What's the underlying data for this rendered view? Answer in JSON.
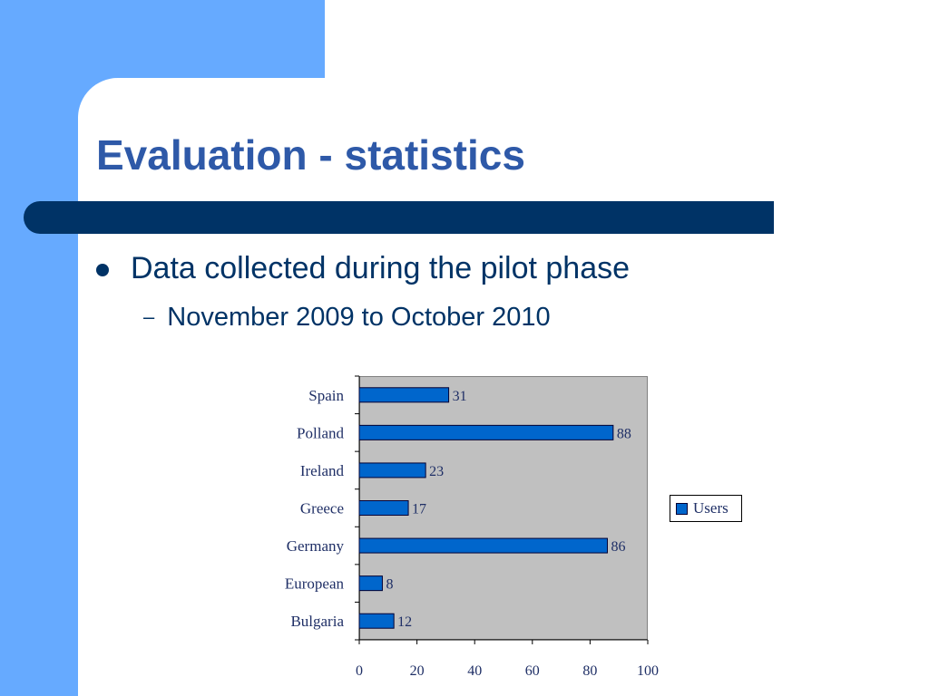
{
  "slide": {
    "title": "Evaluation - statistics",
    "bullet": "Data collected during the pilot phase",
    "sub_bullet": "November 2009 to October 2010",
    "sub_bullet_marker": "–"
  },
  "colors": {
    "background_accent": "#66aaff",
    "title_bar": "#003366",
    "title_text": "#2e59a8",
    "body_text": "#003366",
    "plot_background": "#c0c0c0",
    "bar_fill": "#0066cc",
    "bar_stroke": "#000033",
    "chart_text": "#1f2f66"
  },
  "chart_data": {
    "type": "bar",
    "orientation": "horizontal",
    "categories": [
      "Spain",
      "Polland",
      "Ireland",
      "Greece",
      "Germany",
      "European",
      "Bulgaria"
    ],
    "series": [
      {
        "name": "Users",
        "values": [
          31,
          88,
          23,
          17,
          86,
          8,
          12
        ]
      }
    ],
    "data_labels": [
      "31",
      "88",
      "23",
      "17",
      "86",
      "8",
      "12"
    ],
    "x_ticks": [
      "0",
      "20",
      "40",
      "60",
      "80",
      "100"
    ],
    "xlim": [
      0,
      100
    ],
    "title": "",
    "xlabel": "",
    "ylabel": "",
    "grid": false,
    "legend": {
      "position": "right",
      "entries": [
        "Users"
      ]
    }
  }
}
